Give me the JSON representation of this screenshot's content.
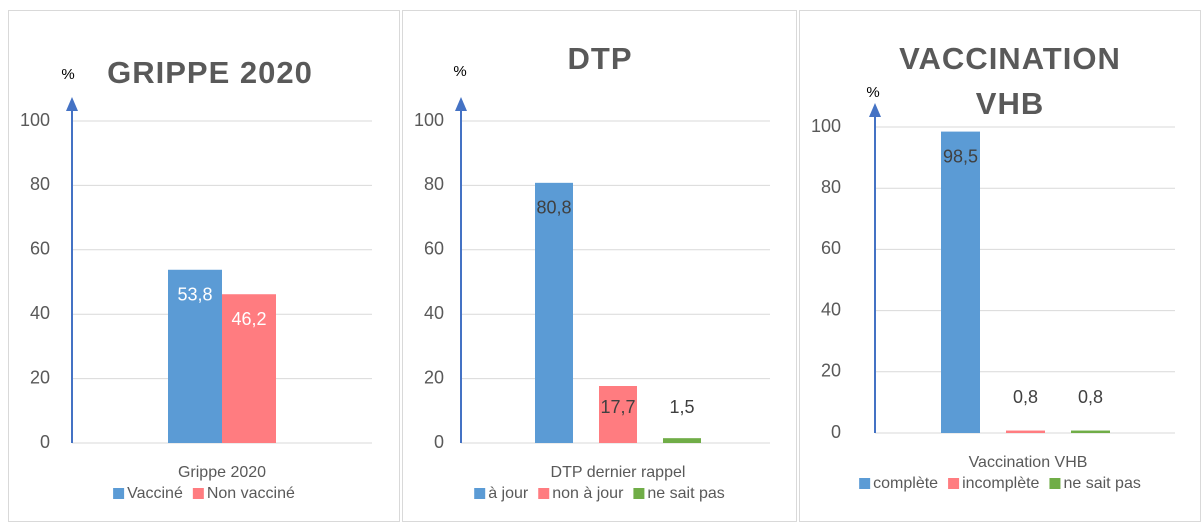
{
  "chart_data": [
    {
      "type": "bar",
      "title": "GRIPPE 2020",
      "y_label": "%",
      "categories": [
        "Grippe 2020"
      ],
      "series": [
        {
          "name": "Vacciné",
          "color": "#5b9bd5",
          "values": [
            53.8
          ],
          "value_labels": [
            "53,8"
          ]
        },
        {
          "name": "Non vacciné",
          "color": "#ff7c80",
          "values": [
            46.2
          ],
          "value_labels": [
            "46,2"
          ]
        }
      ],
      "ylim": [
        0,
        100
      ],
      "yticks": [
        0,
        20,
        40,
        60,
        80,
        100
      ],
      "grid": true
    },
    {
      "type": "bar",
      "title": "DTP",
      "y_label": "%",
      "categories": [
        "DTP dernier rappel"
      ],
      "series": [
        {
          "name": "à jour",
          "color": "#5b9bd5",
          "values": [
            80.8
          ],
          "value_labels": [
            "80,8"
          ]
        },
        {
          "name": "non à jour",
          "color": "#ff7c80",
          "values": [
            17.7
          ],
          "value_labels": [
            "17,7"
          ]
        },
        {
          "name": "ne sait pas",
          "color": "#70ad47",
          "values": [
            1.5
          ],
          "value_labels": [
            "1,5"
          ]
        }
      ],
      "ylim": [
        0,
        100
      ],
      "yticks": [
        0,
        20,
        40,
        60,
        80,
        100
      ],
      "grid": true
    },
    {
      "type": "bar",
      "title": "VACCINATION VHB",
      "y_label": "%",
      "categories": [
        "Vaccination VHB"
      ],
      "series": [
        {
          "name": "complète",
          "color": "#5b9bd5",
          "values": [
            98.5
          ],
          "value_labels": [
            "98,5"
          ]
        },
        {
          "name": "incomplète",
          "color": "#ff7c80",
          "values": [
            0.8
          ],
          "value_labels": [
            "0,8"
          ]
        },
        {
          "name": "ne sait pas",
          "color": "#70ad47",
          "values": [
            0.8
          ],
          "value_labels": [
            "0,8"
          ]
        }
      ],
      "ylim": [
        0,
        100
      ],
      "yticks": [
        0,
        20,
        40,
        60,
        80,
        100
      ],
      "grid": true
    }
  ]
}
